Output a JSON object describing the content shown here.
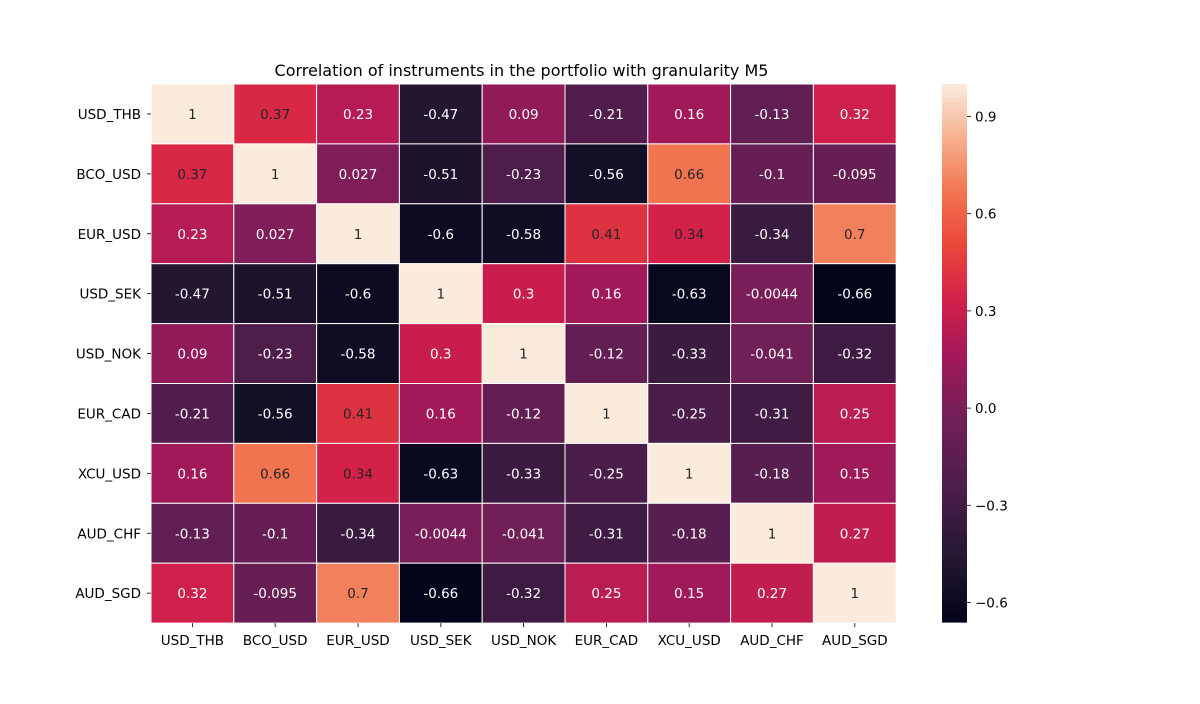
{
  "chart_data": {
    "type": "heatmap",
    "title": "Correlation of instruments in the portfolio with granularity M5",
    "xlabel": "",
    "ylabel": "",
    "rows": [
      "USD_THB",
      "BCO_USD",
      "EUR_USD",
      "USD_SEK",
      "USD_NOK",
      "EUR_CAD",
      "XCU_USD",
      "AUD_CHF",
      "AUD_SGD"
    ],
    "cols": [
      "USD_THB",
      "BCO_USD",
      "EUR_USD",
      "USD_SEK",
      "USD_NOK",
      "EUR_CAD",
      "XCU_USD",
      "AUD_CHF",
      "AUD_SGD"
    ],
    "values": [
      [
        1,
        0.37,
        0.23,
        -0.47,
        0.09,
        -0.21,
        0.16,
        -0.13,
        0.32
      ],
      [
        0.37,
        1,
        0.027,
        -0.51,
        -0.23,
        -0.56,
        0.66,
        -0.1,
        -0.095
      ],
      [
        0.23,
        0.027,
        1,
        -0.6,
        -0.58,
        0.41,
        0.34,
        -0.34,
        0.7
      ],
      [
        -0.47,
        -0.51,
        -0.6,
        1,
        0.3,
        0.16,
        -0.63,
        -0.0044,
        -0.66
      ],
      [
        0.09,
        -0.23,
        -0.58,
        0.3,
        1,
        -0.12,
        -0.33,
        -0.041,
        -0.32
      ],
      [
        -0.21,
        -0.56,
        0.41,
        0.16,
        -0.12,
        1,
        -0.25,
        -0.31,
        0.25
      ],
      [
        0.16,
        0.66,
        0.34,
        -0.63,
        -0.33,
        -0.25,
        1,
        -0.18,
        0.15
      ],
      [
        -0.13,
        -0.1,
        -0.34,
        -0.0044,
        -0.041,
        -0.31,
        -0.18,
        1,
        0.27
      ],
      [
        0.32,
        -0.095,
        0.7,
        -0.66,
        -0.32,
        0.25,
        0.15,
        0.27,
        1
      ]
    ],
    "cell_labels": [
      [
        "1",
        "0.37",
        "0.23",
        "-0.47",
        "0.09",
        "-0.21",
        "0.16",
        "-0.13",
        "0.32"
      ],
      [
        "0.37",
        "1",
        "0.027",
        "-0.51",
        "-0.23",
        "-0.56",
        "0.66",
        "-0.1",
        "-0.095"
      ],
      [
        "0.23",
        "0.027",
        "1",
        "-0.6",
        "-0.58",
        "0.41",
        "0.34",
        "-0.34",
        "0.7"
      ],
      [
        "-0.47",
        "-0.51",
        "-0.6",
        "1",
        "0.3",
        "0.16",
        "-0.63",
        "-0.0044",
        "-0.66"
      ],
      [
        "0.09",
        "-0.23",
        "-0.58",
        "0.3",
        "1",
        "-0.12",
        "-0.33",
        "-0.041",
        "-0.32"
      ],
      [
        "-0.21",
        "-0.56",
        "0.41",
        "0.16",
        "-0.12",
        "1",
        "-0.25",
        "-0.31",
        "0.25"
      ],
      [
        "0.16",
        "0.66",
        "0.34",
        "-0.63",
        "-0.33",
        "-0.25",
        "1",
        "-0.18",
        "0.15"
      ],
      [
        "-0.13",
        "-0.1",
        "-0.34",
        "-0.0044",
        "-0.041",
        "-0.31",
        "-0.18",
        "1",
        "0.27"
      ],
      [
        "0.32",
        "-0.095",
        "0.7",
        "-0.66",
        "-0.32",
        "0.25",
        "0.15",
        "0.27",
        "1"
      ]
    ],
    "colorbar": {
      "vmin": -0.66,
      "vmax": 1,
      "ticks": [
        -0.6,
        -0.3,
        0.0,
        0.3,
        0.6,
        0.9
      ],
      "tick_labels": [
        "−0.6",
        "−0.3",
        "0.0",
        "0.3",
        "0.6",
        "0.9"
      ]
    },
    "colormap": "rocket",
    "grid": false,
    "legend": "colorbar-right"
  }
}
